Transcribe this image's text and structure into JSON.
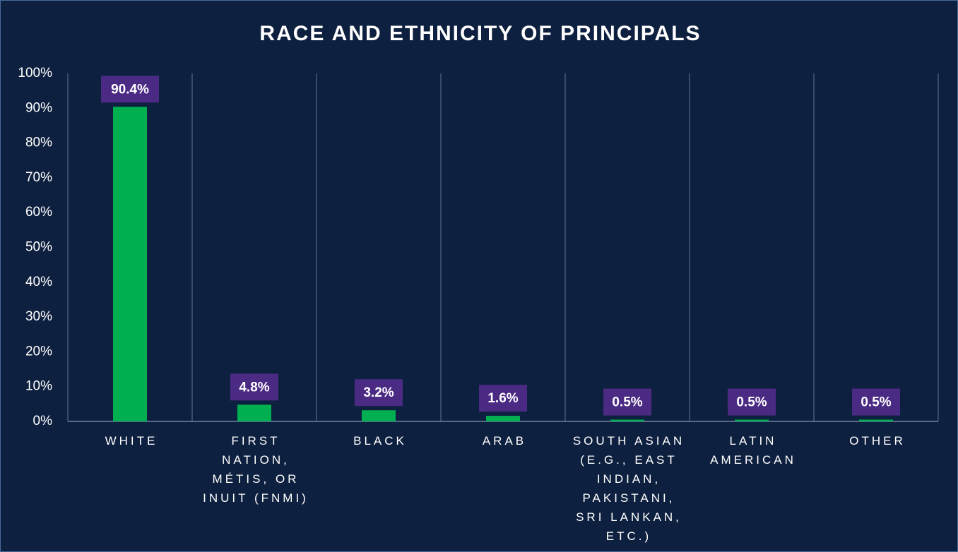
{
  "chart_data": {
    "type": "bar",
    "title": "RACE AND ETHNICITY OF PRINCIPALS",
    "categories": [
      "WHITE",
      "FIRST NATION, MÉTIS, OR INUIT (FNMI)",
      "BLACK",
      "ARAB",
      "SOUTH ASIAN (E.G., EAST INDIAN, PAKISTANI, SRI LANKAN, ETC.)",
      "LATIN AMERICAN",
      "OTHER"
    ],
    "values": [
      90.4,
      4.8,
      3.2,
      1.6,
      0.5,
      0.5,
      0.5
    ],
    "value_labels": [
      "90.4%",
      "4.8%",
      "3.2%",
      "1.6%",
      "0.5%",
      "0.5%",
      "0.5%"
    ],
    "color": "#00b050",
    "ylim": [
      0,
      100
    ],
    "yticks": [
      {
        "value": 0,
        "label": "0%"
      },
      {
        "value": 10,
        "label": "10%"
      },
      {
        "value": 20,
        "label": "20%"
      },
      {
        "value": 30,
        "label": "30%"
      },
      {
        "value": 40,
        "label": "40%"
      },
      {
        "value": 50,
        "label": "50%"
      },
      {
        "value": 60,
        "label": "60%"
      },
      {
        "value": 70,
        "label": "70%"
      },
      {
        "value": 80,
        "label": "80%"
      },
      {
        "value": 90,
        "label": "90%"
      },
      {
        "value": 100,
        "label": "100%"
      }
    ]
  }
}
